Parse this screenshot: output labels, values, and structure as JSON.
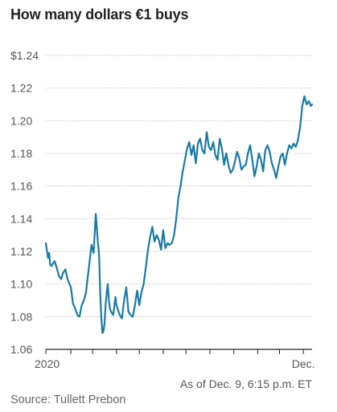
{
  "title": "How many dollars €1 buys",
  "note": "As of Dec. 9, 6:15 p.m. ET",
  "source": "Source: Tullett Prebon",
  "colors": {
    "line": "#1a7aa8",
    "grid": "#c8c8c8",
    "axis": "#222222",
    "text": "#555555"
  },
  "chart_data": {
    "type": "line",
    "title": "How many dollars €1 buys",
    "ylim": [
      1.06,
      1.24
    ],
    "xlim": [
      0,
      245
    ],
    "y_ticks": [
      1.06,
      1.08,
      1.1,
      1.12,
      1.14,
      1.16,
      1.18,
      1.2,
      1.22,
      1.24
    ],
    "y_tick_labels": [
      "1.06",
      "1.08",
      "1.10",
      "1.12",
      "1.14",
      "1.16",
      "1.18",
      "1.20",
      "1.22",
      "$1.24"
    ],
    "x_ticks": [
      0,
      23,
      43,
      65,
      86,
      108,
      129,
      151,
      173,
      195,
      215,
      237
    ],
    "x_tick_labels": [
      "2020",
      "",
      "",
      "",
      "",
      "",
      "",
      "",
      "",
      "",
      "",
      "Dec."
    ],
    "grid": true,
    "series": [
      {
        "x": [
          0,
          2,
          3,
          4,
          5,
          6,
          8,
          10,
          12,
          14,
          16,
          18,
          20,
          23,
          25,
          27,
          29,
          31,
          33,
          35,
          37,
          38,
          40,
          42,
          44,
          46,
          48,
          49,
          50,
          51,
          52,
          53,
          54,
          55,
          56,
          57,
          58,
          59,
          60,
          62,
          64,
          65,
          66,
          68,
          70,
          72,
          74,
          76,
          78,
          80,
          82,
          84,
          86,
          88,
          90,
          92,
          94,
          96,
          98,
          100,
          102,
          104,
          106,
          108,
          110,
          112,
          114,
          116,
          118,
          120,
          122,
          124,
          126,
          128,
          130,
          132,
          134,
          136,
          138,
          140,
          142,
          144,
          146,
          148,
          150,
          152,
          154,
          156,
          158,
          160,
          162,
          164,
          166,
          168,
          170,
          172,
          174,
          176,
          178,
          180,
          182,
          184,
          186,
          188,
          190,
          192,
          194,
          196,
          198,
          200,
          202,
          204,
          206,
          208,
          210,
          212,
          214,
          216,
          218,
          220,
          222,
          224,
          226,
          228,
          230,
          232,
          234,
          236,
          238,
          240,
          242,
          244,
          245
        ],
        "y": [
          1.125,
          1.116,
          1.119,
          1.112,
          1.111,
          1.112,
          1.114,
          1.11,
          1.105,
          1.103,
          1.107,
          1.109,
          1.103,
          1.098,
          1.088,
          1.085,
          1.081,
          1.08,
          1.087,
          1.09,
          1.095,
          1.101,
          1.112,
          1.124,
          1.119,
          1.143,
          1.125,
          1.118,
          1.095,
          1.08,
          1.07,
          1.071,
          1.076,
          1.087,
          1.095,
          1.1,
          1.09,
          1.085,
          1.083,
          1.081,
          1.092,
          1.087,
          1.085,
          1.081,
          1.079,
          1.09,
          1.098,
          1.083,
          1.081,
          1.08,
          1.087,
          1.096,
          1.087,
          1.095,
          1.1,
          1.11,
          1.121,
          1.129,
          1.135,
          1.126,
          1.13,
          1.127,
          1.121,
          1.133,
          1.122,
          1.125,
          1.124,
          1.125,
          1.13,
          1.14,
          1.153,
          1.16,
          1.169,
          1.176,
          1.183,
          1.187,
          1.179,
          1.185,
          1.174,
          1.186,
          1.189,
          1.182,
          1.18,
          1.193,
          1.184,
          1.182,
          1.187,
          1.179,
          1.176,
          1.189,
          1.183,
          1.173,
          1.18,
          1.173,
          1.168,
          1.17,
          1.175,
          1.181,
          1.177,
          1.17,
          1.172,
          1.173,
          1.18,
          1.185,
          1.176,
          1.166,
          1.172,
          1.18,
          1.176,
          1.169,
          1.182,
          1.185,
          1.181,
          1.174,
          1.17,
          1.165,
          1.172,
          1.178,
          1.18,
          1.173,
          1.18,
          1.185,
          1.183,
          1.186,
          1.184,
          1.188,
          1.196,
          1.209,
          1.215,
          1.21,
          1.212,
          1.209,
          1.21
        ]
      }
    ]
  }
}
